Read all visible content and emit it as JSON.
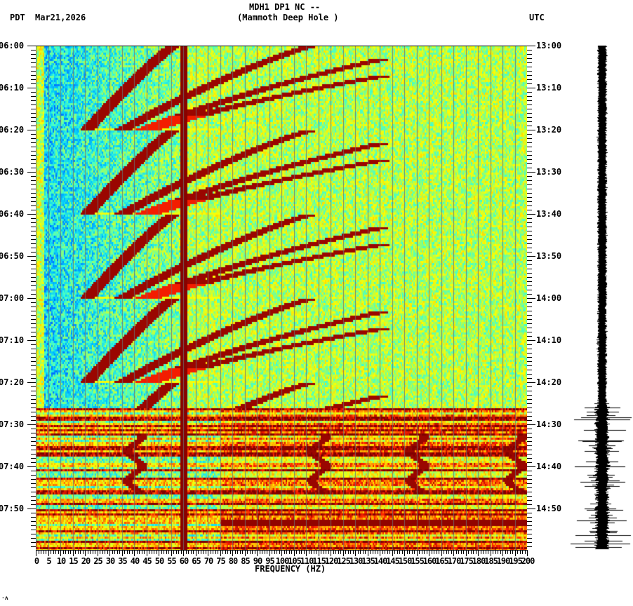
{
  "header": {
    "station_line": "MDH1 DP1 NC --",
    "station_name": "(Mammoth Deep Hole )",
    "left_timezone": "PDT",
    "date": "Mar21,2026",
    "right_timezone": "UTC"
  },
  "footer": {
    "corner_mark": "·ʌ"
  },
  "chart_data": {
    "type": "heatmap",
    "title": "MDH1 DP1 NC -- (Mammoth Deep Hole ) spectrogram",
    "subtitle": "PDT Mar21,2026",
    "xlabel": "FREQUENCY (HZ)",
    "ylabel_left": "PDT",
    "ylabel_right": "UTC",
    "xlim": [
      0,
      200
    ],
    "x_ticks": [
      0,
      5,
      10,
      15,
      20,
      25,
      30,
      35,
      40,
      45,
      50,
      55,
      60,
      65,
      70,
      75,
      80,
      85,
      90,
      95,
      100,
      105,
      110,
      115,
      120,
      125,
      130,
      135,
      140,
      145,
      150,
      155,
      160,
      165,
      170,
      175,
      180,
      185,
      190,
      195,
      200
    ],
    "x_tick_labels": [
      "0",
      "5",
      "10",
      "15",
      "20",
      "25",
      "30",
      "35",
      "40",
      "45",
      "50",
      "55",
      "60",
      "65",
      "70",
      "75",
      "80",
      "85",
      "90",
      "95",
      "100",
      "105",
      "110",
      "115",
      "120",
      "125",
      "130",
      "135",
      "140",
      "145",
      "150",
      "155",
      "160",
      "165",
      "170",
      "175",
      "180",
      "185",
      "190",
      "195",
      "200"
    ],
    "y_ticks_left": [
      "06:00",
      "06:10",
      "06:20",
      "06:30",
      "06:40",
      "06:50",
      "07:00",
      "07:10",
      "07:20",
      "07:30",
      "07:40",
      "07:50"
    ],
    "y_ticks_right": [
      "13:00",
      "13:10",
      "13:20",
      "13:30",
      "13:40",
      "13:50",
      "14:00",
      "14:10",
      "14:20",
      "14:30",
      "14:40",
      "14:50"
    ],
    "time_range_minutes": [
      0,
      120
    ],
    "minor_tick_interval_minutes": 1,
    "colormap": [
      "#0050ff",
      "#00c8ff",
      "#40ffd0",
      "#b0ff50",
      "#ffff00",
      "#ffa000",
      "#ff2000",
      "#800000"
    ],
    "features": [
      {
        "type": "constant_line",
        "frequency_hz": 60,
        "label": "60 Hz power line",
        "intensity": "max"
      },
      {
        "type": "swept_harmonics",
        "sweep_period_minutes": 20,
        "sweeps_start_minutes": [
          0,
          20,
          40,
          60
        ],
        "direction": "frequency decreasing over time",
        "harmonics_base_hz_at_start": 55,
        "harmonics_base_hz_at_end": 20
      },
      {
        "type": "broadband_noise",
        "start_minute": 86,
        "end_minute": 120,
        "description": "strong horizontal banded energy across all frequencies"
      },
      {
        "type": "narrowband_line",
        "frequency_hz": 40,
        "start_minute": 92,
        "end_minute": 106
      },
      {
        "type": "wandering_lines",
        "frequencies_hz": [
          115,
          155,
          195
        ],
        "start_minute": 93,
        "end_minute": 104
      },
      {
        "type": "horizontal_band",
        "minute": 113,
        "from_hz": 75,
        "to_hz": 200
      },
      {
        "type": "horizontal_band",
        "minute": 90,
        "from_hz": 130,
        "to_hz": 200
      }
    ],
    "seismogram": {
      "quiet_until_minute": 85,
      "active_from_minute": 85,
      "max_amplitude_minutes": [
        88,
        110,
        119
      ]
    }
  }
}
